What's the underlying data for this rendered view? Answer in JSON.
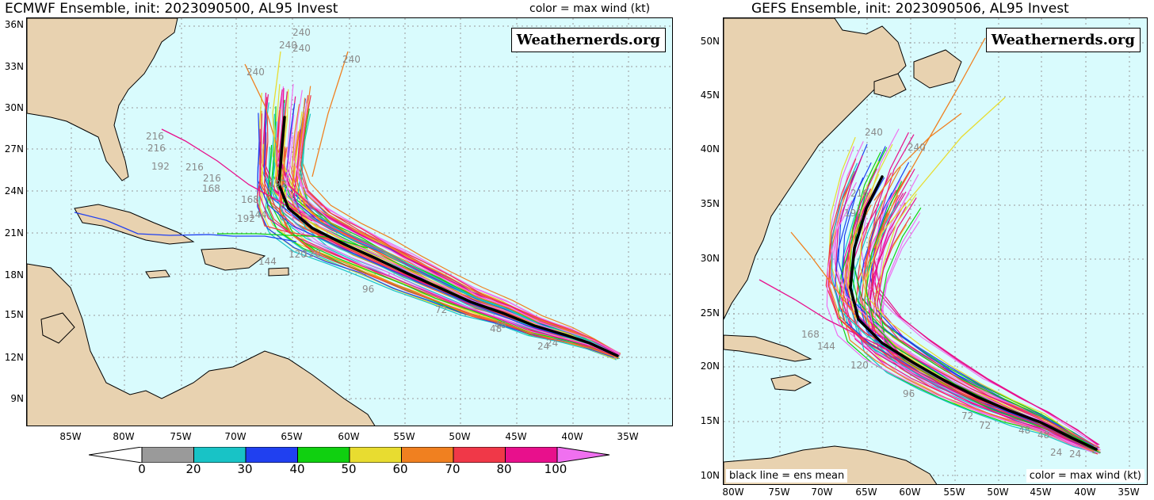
{
  "left_panel": {
    "title": "ECMWF Ensemble, init: 2023090500, AL95 Invest",
    "legend_note": "color = max wind (kt)",
    "brand": "Weathernerds.org",
    "lat_labels": [
      "36N",
      "33N",
      "30N",
      "27N",
      "24N",
      "21N",
      "18N",
      "15N",
      "12N",
      "9N"
    ],
    "lon_labels": [
      "85W",
      "80W",
      "75W",
      "70W",
      "65W",
      "60W",
      "55W",
      "50W",
      "45W",
      "40W",
      "35W"
    ],
    "hour_labels": [
      "240",
      "240",
      "240",
      "240",
      "240",
      "216",
      "216",
      "216",
      "216",
      "192",
      "192",
      "192",
      "168",
      "168",
      "144",
      "144",
      "120",
      "120",
      "96",
      "72",
      "48",
      "48",
      "24",
      "24"
    ]
  },
  "right_panel": {
    "title": "GEFS Ensemble, init: 2023090506, AL95 Invest",
    "brand": "Weathernerds.org",
    "mean_note": "black line = ens mean",
    "legend_note": "color = max wind (kt)",
    "lat_labels": [
      "50N",
      "45N",
      "40N",
      "35N",
      "30N",
      "25N",
      "20N",
      "15N",
      "10N"
    ],
    "lon_labels": [
      "80W",
      "75W",
      "70W",
      "65W",
      "60W",
      "55W",
      "50W",
      "45W",
      "40W",
      "35W"
    ],
    "hour_labels": [
      "240",
      "240",
      "216",
      "192",
      "168",
      "144",
      "120",
      "96",
      "72",
      "72",
      "48",
      "48",
      "24",
      "24"
    ]
  },
  "colorbar": {
    "labels": [
      "0",
      "20",
      "30",
      "40",
      "50",
      "60",
      "70",
      "80",
      "100"
    ],
    "colors": [
      "#ffffff",
      "#9a9a9a",
      "#18c3c6",
      "#2040f0",
      "#10d010",
      "#e8dc30",
      "#f08020",
      "#f03848",
      "#e8108c",
      "#f070f0"
    ]
  },
  "colors": {
    "ocean": "#d9fbfd",
    "land": "#e8d2b0",
    "mean_track": "#000000"
  }
}
